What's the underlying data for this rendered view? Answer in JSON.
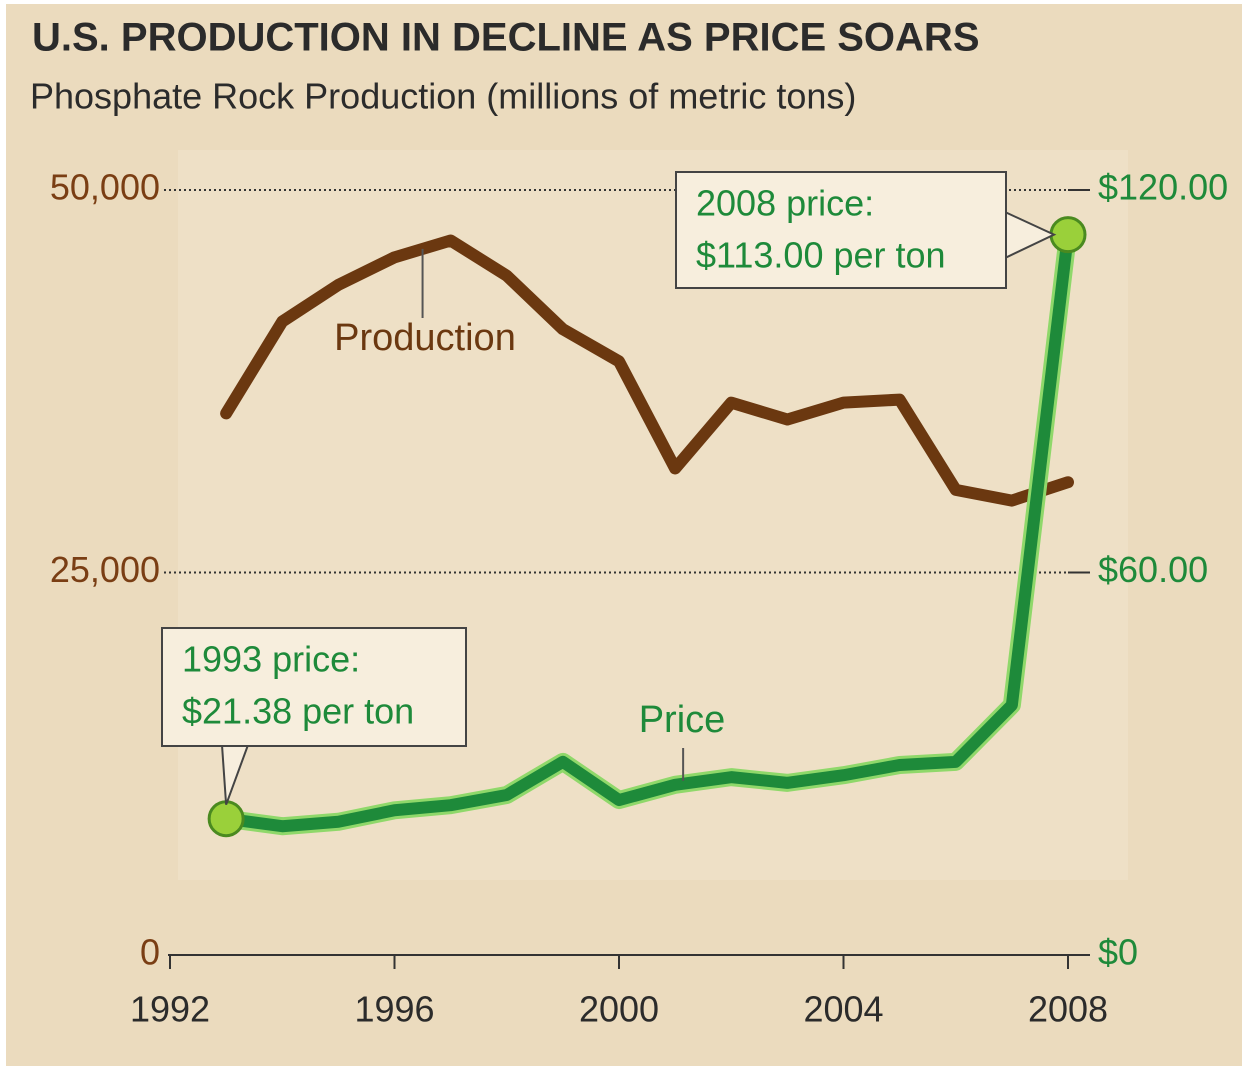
{
  "chart_data": {
    "type": "line",
    "title": "U.S. PRODUCTION IN DECLINE AS PRICE SOARS",
    "subtitle": "Phosphate Rock Production (millions of metric tons)",
    "x": [
      1993,
      1994,
      1995,
      1996,
      1997,
      1998,
      1999,
      2000,
      2001,
      2002,
      2003,
      2004,
      2005,
      2006,
      2007,
      2008
    ],
    "series": [
      {
        "name": "Production",
        "color": "#6b3810",
        "values": [
          35400,
          41400,
          43800,
          45600,
          46700,
          44400,
          40900,
          38800,
          31800,
          36100,
          35000,
          36100,
          36300,
          30400,
          29700,
          30900
        ]
      },
      {
        "name": "Price",
        "color": "#1e8a3a",
        "axis": "y2",
        "values": [
          21.38,
          20.2,
          20.9,
          22.7,
          23.5,
          25.1,
          30.3,
          24.3,
          26.7,
          27.9,
          27.0,
          28.2,
          29.8,
          30.3,
          39.2,
          113.0
        ]
      }
    ],
    "annotations": [
      {
        "lines": [
          "2008 price:",
          "$113.00 per ton"
        ]
      },
      {
        "lines": [
          "1993 price:",
          "$21.38 per ton"
        ]
      }
    ],
    "xlim": [
      1992,
      2008
    ],
    "xticks": [
      1992,
      1996,
      2000,
      2004,
      2008
    ],
    "ylim": [
      0,
      50000
    ],
    "yticks": [
      0,
      {
        "value": 25000,
        "label": "25,000"
      },
      {
        "value": 50000,
        "label": "50,000"
      }
    ],
    "y2lim": [
      0,
      120
    ],
    "y2ticks": [
      {
        "value": 0,
        "label": "$0"
      },
      {
        "value": 60,
        "label": "$60.00"
      },
      {
        "value": 120,
        "label": "$120.00"
      }
    ],
    "grid": true
  }
}
